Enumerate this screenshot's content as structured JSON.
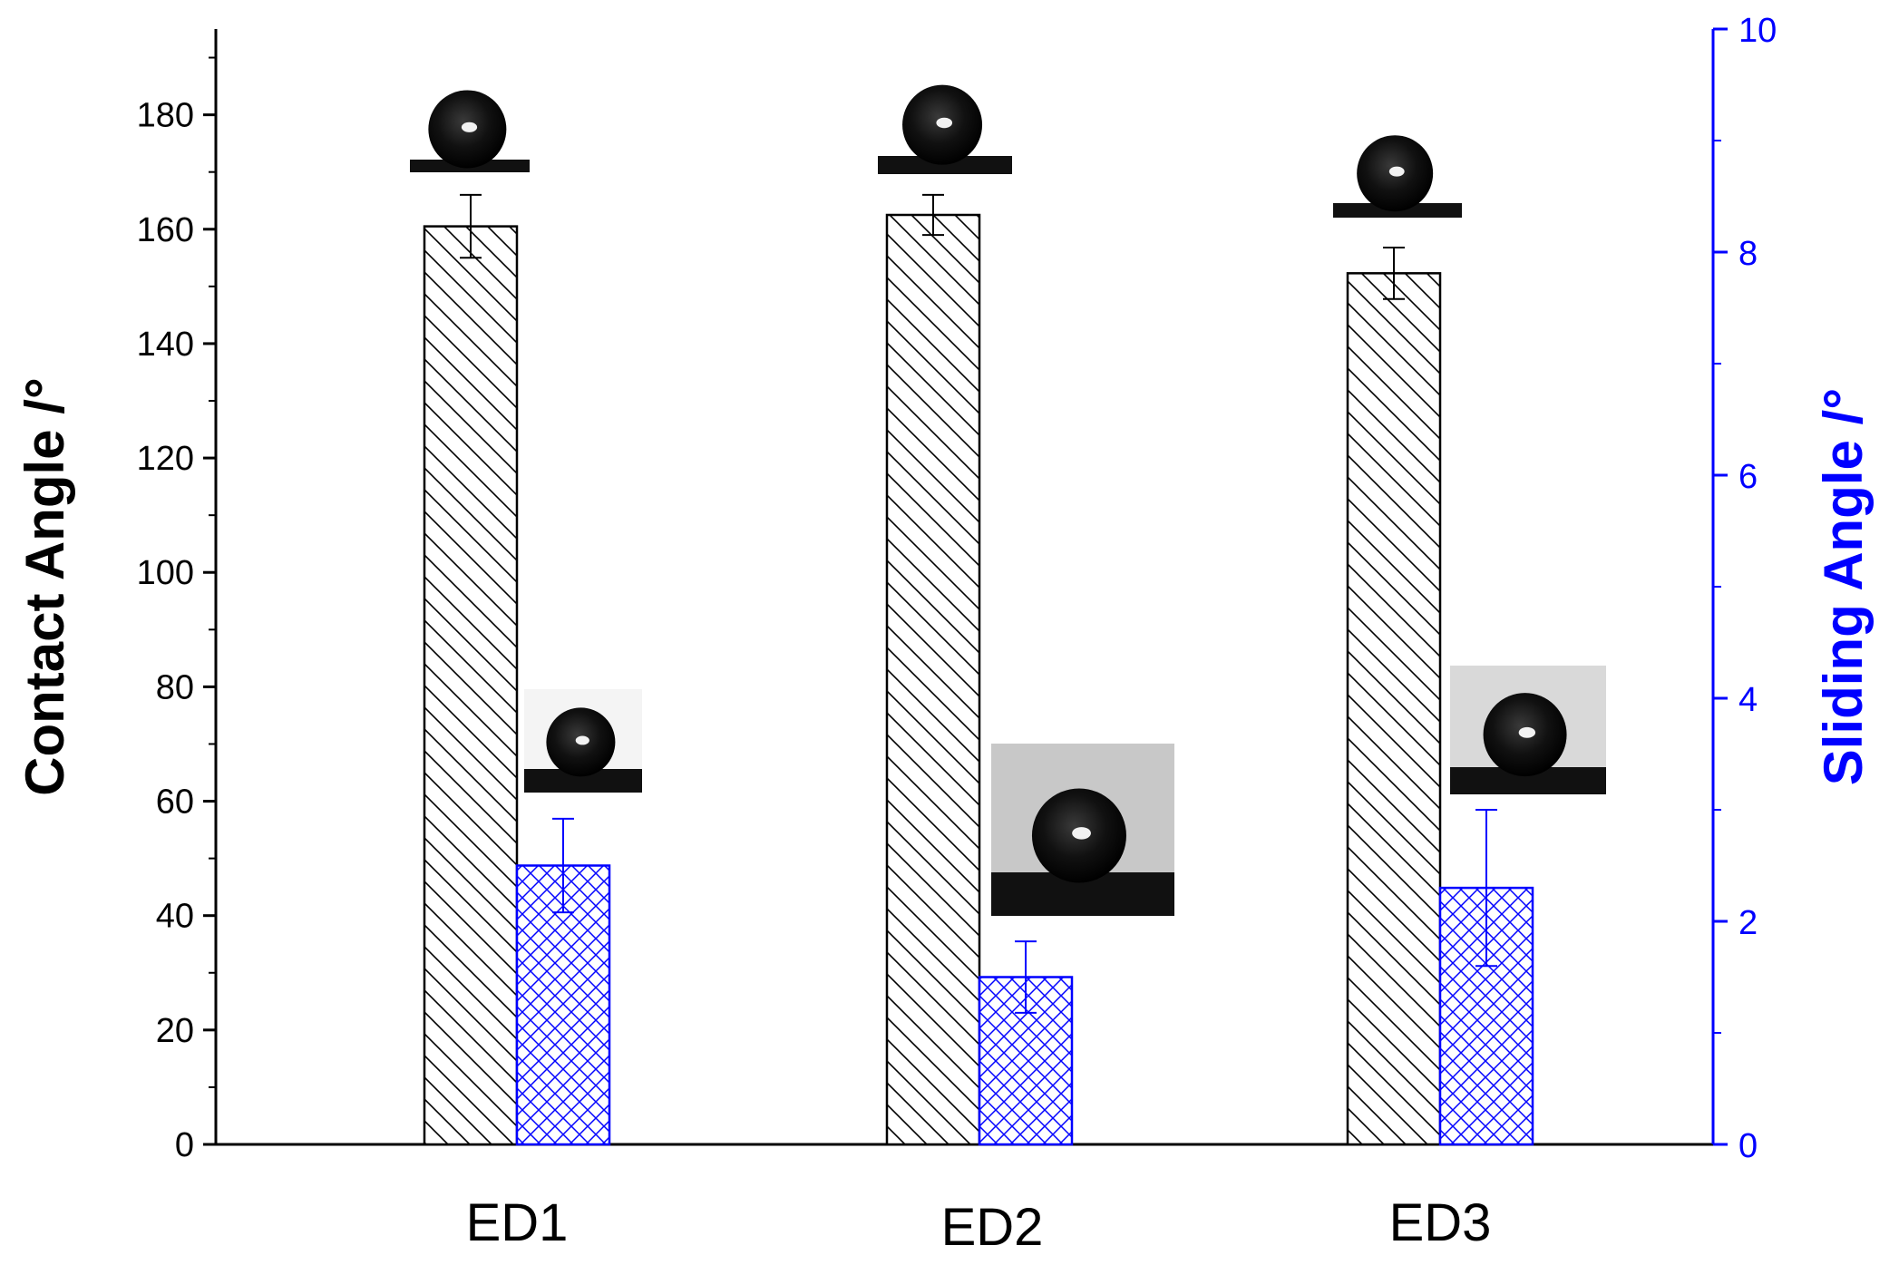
{
  "chart_data": {
    "type": "bar",
    "categories": [
      "ED1",
      "ED2",
      "ED3"
    ],
    "y_left": {
      "label": "Contact Angle /°",
      "range": [
        0,
        195
      ],
      "ticks": [
        0,
        20,
        40,
        60,
        80,
        100,
        120,
        140,
        160,
        180
      ],
      "color": "#000000"
    },
    "y_right": {
      "label": "Sliding Angle /°",
      "range": [
        0,
        10
      ],
      "ticks": [
        0,
        2,
        4,
        6,
        8,
        10
      ],
      "color": "#0000ff"
    },
    "series": [
      {
        "axis": "left",
        "color": "#000000",
        "pattern": "diagonal-hatch",
        "values": [
          160.5,
          162.5,
          152.3
        ],
        "errors": [
          5.5,
          3.5,
          4.5
        ]
      },
      {
        "axis": "right",
        "color": "#0000ff",
        "pattern": "cross-hatch",
        "values": [
          2.5,
          1.5,
          2.3
        ],
        "errors": [
          0.42,
          0.32,
          0.7
        ]
      }
    ],
    "insets": [
      {
        "category": "ED1",
        "axis": "left",
        "depicts": "water droplet image"
      },
      {
        "category": "ED2",
        "axis": "left",
        "depicts": "water droplet image"
      },
      {
        "category": "ED3",
        "axis": "left",
        "depicts": "water droplet image"
      },
      {
        "category": "ED1",
        "axis": "right",
        "depicts": "water droplet image"
      },
      {
        "category": "ED2",
        "axis": "right",
        "depicts": "water droplet image"
      },
      {
        "category": "ED3",
        "axis": "right",
        "depicts": "water droplet image"
      }
    ],
    "grid": false,
    "legend": "none"
  }
}
